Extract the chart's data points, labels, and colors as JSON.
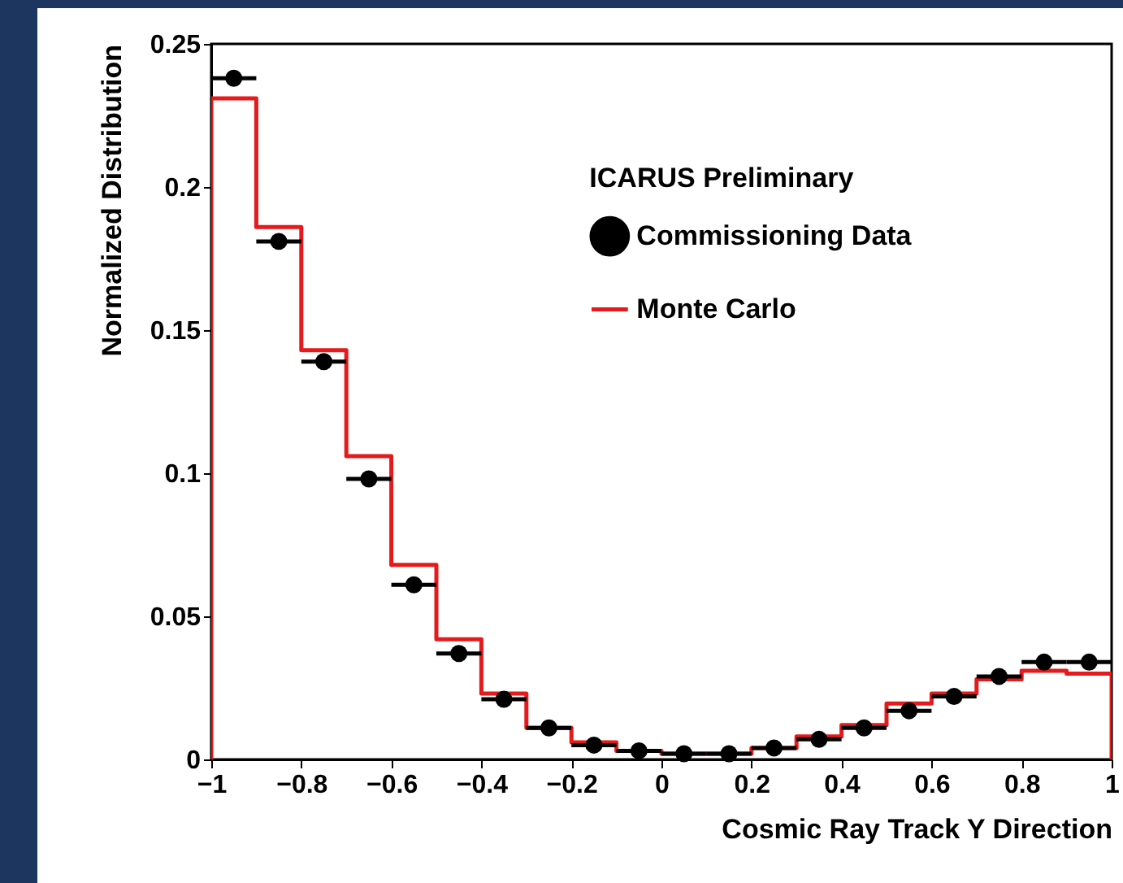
{
  "chart_data": {
    "type": "histogram",
    "xlabel": "Cosmic Ray Track Y Direction",
    "ylabel": "Normalized Distribution",
    "legend_title": "ICARUS Preliminary",
    "legend": "top right",
    "grid": false,
    "bins": [
      -1,
      -0.9,
      -0.8,
      -0.7,
      -0.6,
      -0.5,
      -0.4,
      -0.3,
      -0.2,
      -0.1,
      0,
      0.1,
      0.2,
      0.3,
      0.4,
      0.5,
      0.6,
      0.7,
      0.8,
      0.9,
      1
    ],
    "xlim": [
      -1,
      1
    ],
    "xticks": [
      {
        "value": -1,
        "label": "−1"
      },
      {
        "value": -0.8,
        "label": "−0.8"
      },
      {
        "value": -0.6,
        "label": "−0.6"
      },
      {
        "value": -0.4,
        "label": "−0.4"
      },
      {
        "value": -0.2,
        "label": "−0.2"
      },
      0,
      0.2,
      0.4,
      0.6,
      0.8,
      1
    ],
    "ylim": [
      0,
      0.25
    ],
    "yticks": [
      0,
      0.05,
      0.1,
      0.15,
      0.2,
      0.25
    ],
    "series": [
      {
        "name": "Commissioning Data",
        "type": "scatter",
        "marker": "circle",
        "color": "#000000",
        "x": [
          -0.95,
          -0.85,
          -0.75,
          -0.65,
          -0.55,
          -0.45,
          -0.35,
          -0.25,
          -0.15,
          -0.05,
          0.05,
          0.15,
          0.25,
          0.35,
          0.45,
          0.55,
          0.65,
          0.75,
          0.85,
          0.95
        ],
        "values": [
          0.238,
          0.181,
          0.139,
          0.098,
          0.061,
          0.037,
          0.021,
          0.011,
          0.005,
          0.003,
          0.002,
          0.002,
          0.004,
          0.007,
          0.011,
          0.017,
          0.022,
          0.029,
          0.034,
          0.034
        ],
        "xerrors": [
          0.05,
          0.05,
          0.05,
          0.05,
          0.05,
          0.05,
          0.05,
          0.05,
          0.05,
          0.05,
          0.05,
          0.05,
          0.05,
          0.05,
          0.05,
          0.05,
          0.05,
          0.05,
          0.05,
          0.05
        ]
      },
      {
        "name": "Monte Carlo",
        "color": "#e41a1c",
        "values": [
          0.231,
          0.186,
          0.143,
          0.106,
          0.068,
          0.042,
          0.023,
          0.011,
          0.006,
          0.003,
          0.002,
          0.002,
          0.004,
          0.008,
          0.012,
          0.0195,
          0.023,
          0.028,
          0.031,
          0.03
        ]
      }
    ]
  }
}
